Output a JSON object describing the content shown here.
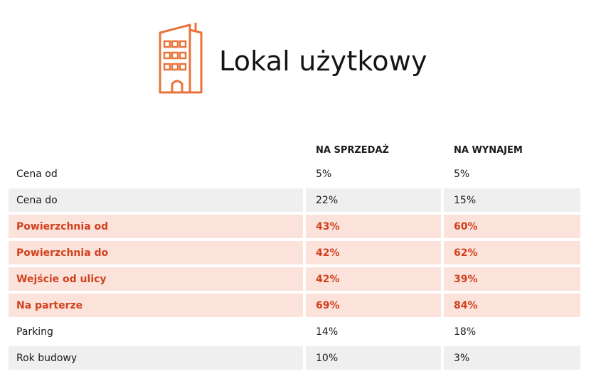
{
  "header": {
    "title": "Lokal użytkowy",
    "icon": "building-icon",
    "icon_color": "#e8743b"
  },
  "table": {
    "columns": [
      "",
      "NA SPRZEDAŻ",
      "NA WYNAJEM"
    ],
    "rows": [
      {
        "label": "Cena od",
        "sale": "5%",
        "rent": "5%",
        "style": "plain"
      },
      {
        "label": "Cena do",
        "sale": "22%",
        "rent": "15%",
        "style": "gray"
      },
      {
        "label": "Powierzchnia od",
        "sale": "43%",
        "rent": "60%",
        "style": "highlight"
      },
      {
        "label": "Powierzchnia do",
        "sale": "42%",
        "rent": "62%",
        "style": "highlight"
      },
      {
        "label": "Wejście od ulicy",
        "sale": "42%",
        "rent": "39%",
        "style": "highlight"
      },
      {
        "label": "Na parterze",
        "sale": "69%",
        "rent": "84%",
        "style": "highlight"
      },
      {
        "label": "Parking",
        "sale": "14%",
        "rent": "18%",
        "style": "plain"
      },
      {
        "label": "Rok budowy",
        "sale": "10%",
        "rent": "3%",
        "style": "gray"
      }
    ]
  },
  "colors": {
    "highlight_bg": "#fbe3dc",
    "highlight_text": "#d2401c",
    "gray_bg": "#efefef"
  }
}
